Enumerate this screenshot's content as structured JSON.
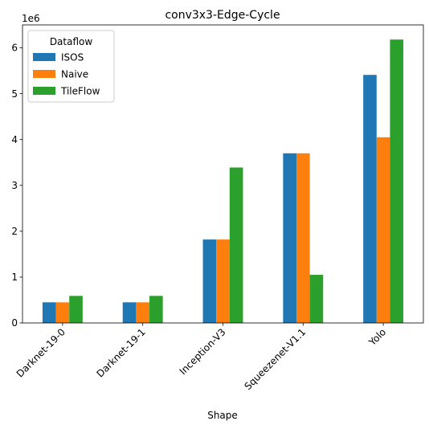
{
  "chart_data": {
    "type": "bar",
    "title": "conv3x3-Edge-Cycle",
    "xlabel": "Shape",
    "ylabel": "",
    "y_offset_label": "1e6",
    "y_scale": 1000000,
    "ylim": [
      0,
      6.5
    ],
    "yticks": [
      0,
      1,
      2,
      3,
      4,
      5,
      6
    ],
    "categories": [
      "Darknet-19-0",
      "Darknet-19-1",
      "Inception-V3",
      "Squeezenet-V1.1",
      "Yolo"
    ],
    "legend": {
      "title": "Dataflow",
      "placement": "top-left"
    },
    "grid": false,
    "series": [
      {
        "name": "ISOS",
        "color": "#1f77b4",
        "values": [
          0.45,
          0.45,
          1.82,
          3.7,
          5.41
        ]
      },
      {
        "name": "Naive",
        "color": "#ff7f0e",
        "values": [
          0.45,
          0.45,
          1.82,
          3.7,
          4.05
        ]
      },
      {
        "name": "TileFlow",
        "color": "#2ca02c",
        "values": [
          0.59,
          0.59,
          3.39,
          1.05,
          6.18
        ]
      }
    ]
  }
}
